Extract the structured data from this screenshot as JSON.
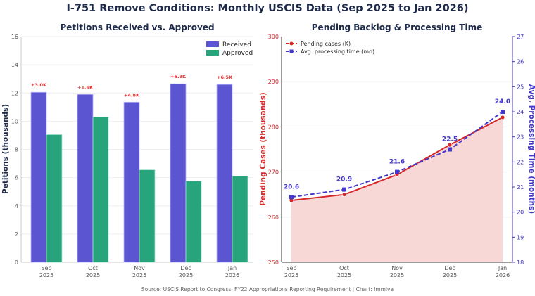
{
  "title": "I-751 Remove Conditions: Monthly USCIS Data (Sep 2025 to Jan 2026)",
  "source": "Source: USCIS Report to Congress, FY22 Appropriations Reporting Requirement  |  Chart: Immiva",
  "colors": {
    "received": "#5b55d2",
    "approved": "#28a47c",
    "pending": "#d62828",
    "processing": "#4338ca",
    "fill": "#f8d7d7",
    "title": "#1e2a4a",
    "diff": "#e03030"
  },
  "chart_data": [
    {
      "type": "bar",
      "title": "Petitions Received vs. Approved",
      "ylabel": "Petitions (thousands)",
      "xlabel": "",
      "categories": [
        "Sep\n2025",
        "Oct\n2025",
        "Nov\n2025",
        "Dec\n2025",
        "Jan\n2026"
      ],
      "ylim": [
        0,
        16
      ],
      "yticks": [
        0,
        2,
        4,
        6,
        8,
        10,
        12,
        14,
        16
      ],
      "grid": true,
      "legend": "top-right",
      "series": [
        {
          "name": "Received",
          "values": [
            12.05,
            11.9,
            11.35,
            12.65,
            12.6
          ]
        },
        {
          "name": "Approved",
          "values": [
            9.05,
            10.3,
            6.55,
            5.75,
            6.1
          ]
        }
      ],
      "annotations": [
        "+3.0K",
        "+1.6K",
        "+4.8K",
        "+6.9K",
        "+6.5K"
      ]
    },
    {
      "type": "line",
      "title": "Pending Backlog & Processing Time",
      "ylabel": "Pending Cases (thousands)",
      "y2label": "Avg. Processing Time (months)",
      "categories": [
        "Sep\n2025",
        "Oct\n2025",
        "Nov\n2025",
        "Dec\n2025",
        "Jan\n2026"
      ],
      "ylim": [
        250,
        300
      ],
      "yticks": [
        250,
        260,
        270,
        280,
        290,
        300
      ],
      "y2lim": [
        18,
        27
      ],
      "y2ticks": [
        18,
        19,
        20,
        21,
        22,
        23,
        24,
        25,
        26,
        27
      ],
      "grid": true,
      "legend": "top-left",
      "series": [
        {
          "name": "Pending cases (K)",
          "axis": "left",
          "values": [
            263.7,
            265.0,
            269.4,
            276.0,
            282.1
          ]
        },
        {
          "name": "Avg. processing time (mo)",
          "axis": "right",
          "values": [
            20.6,
            20.9,
            21.6,
            22.5,
            24.0
          ]
        }
      ],
      "annotations": [
        "20.6",
        "20.9",
        "21.6",
        "22.5",
        "24.0"
      ]
    }
  ]
}
